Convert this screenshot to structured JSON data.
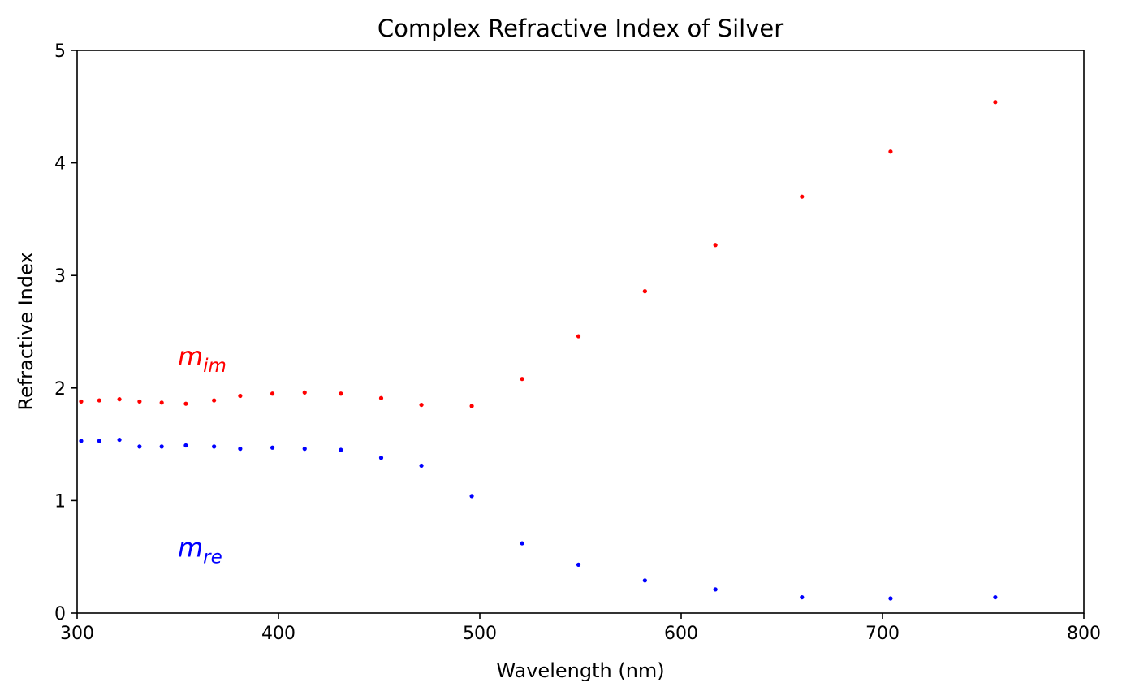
{
  "chart_data": {
    "type": "scatter",
    "title": "Complex Refractive Index of Silver",
    "xlabel": "Wavelength (nm)",
    "ylabel": "Refractive Index",
    "xlim": [
      300,
      800
    ],
    "ylim": [
      0,
      5
    ],
    "xticks": [
      "300",
      "400",
      "500",
      "600",
      "700",
      "800"
    ],
    "yticks": [
      "0",
      "1",
      "2",
      "3",
      "4",
      "5"
    ],
    "grid": false,
    "series": [
      {
        "name": "m_im",
        "color": "#ff0000",
        "x": [
          302,
          311,
          321,
          331,
          342,
          354,
          368,
          381,
          397,
          413,
          431,
          451,
          471,
          496,
          521,
          549,
          582,
          617,
          660,
          704,
          756
        ],
        "y": [
          1.88,
          1.89,
          1.9,
          1.88,
          1.87,
          1.86,
          1.89,
          1.93,
          1.95,
          1.96,
          1.95,
          1.91,
          1.85,
          1.84,
          2.08,
          2.46,
          2.86,
          3.27,
          3.7,
          4.1,
          4.54
        ]
      },
      {
        "name": "m_re",
        "color": "#0000ff",
        "x": [
          302,
          311,
          321,
          331,
          342,
          354,
          368,
          381,
          397,
          413,
          431,
          451,
          471,
          496,
          521,
          549,
          582,
          617,
          660,
          704,
          756
        ],
        "y": [
          1.53,
          1.53,
          1.54,
          1.48,
          1.48,
          1.49,
          1.48,
          1.46,
          1.47,
          1.46,
          1.45,
          1.38,
          1.31,
          1.04,
          0.62,
          0.43,
          0.29,
          0.21,
          0.14,
          0.13,
          0.14
        ]
      }
    ],
    "annotations": [
      {
        "base": "m",
        "sub": "im",
        "x": 350,
        "y": 2.2,
        "color": "#ff0000"
      },
      {
        "base": "m",
        "sub": "re",
        "x": 350,
        "y": 0.5,
        "color": "#0000ff"
      }
    ]
  }
}
